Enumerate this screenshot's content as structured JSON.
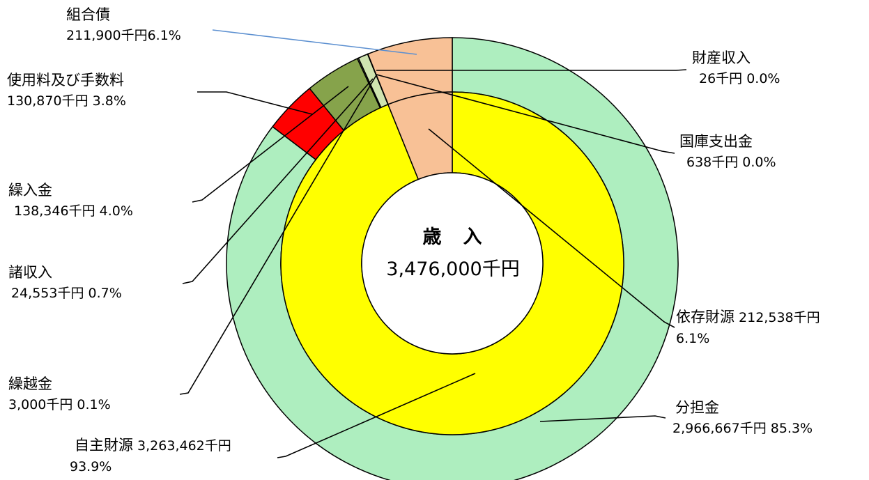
{
  "chart_data": {
    "type": "pie",
    "center": {
      "title": "歳　入",
      "total": "3,476,000千円"
    },
    "inner_ring": [
      {
        "name": "自主財源",
        "value": 3263462,
        "percent": 93.9,
        "color": "#ffff00"
      },
      {
        "name": "依存財源",
        "value": 212538,
        "percent": 6.1,
        "color": "#f8c196"
      }
    ],
    "outer_ring": [
      {
        "name": "分担金",
        "value": 2966667,
        "percent": 85.3,
        "color": "#aeeebf"
      },
      {
        "name": "使用料及び手数料",
        "value": 130870,
        "percent": 3.8,
        "color": "#ff0000"
      },
      {
        "name": "繰入金",
        "value": 138346,
        "percent": 4.0,
        "color": "#86a34b"
      },
      {
        "name": "繰越金",
        "value": 3000,
        "percent": 0.1,
        "color": "#cfe3b0"
      },
      {
        "name": "諸収入",
        "value": 24553,
        "percent": 0.7,
        "color": "#cfe3b0"
      },
      {
        "name": "財産収入",
        "value": 26,
        "percent": 0.0,
        "color": "#000000"
      },
      {
        "name": "国庫支出金",
        "value": 638,
        "percent": 0.0,
        "color": "#000000"
      },
      {
        "name": "組合債",
        "value": 211900,
        "percent": 6.1,
        "color": "#f8c196"
      }
    ],
    "labels": {
      "kumiaisai": {
        "name": "組合債",
        "value": "211,900千円6.1%"
      },
      "shiyoryo": {
        "name": "使用料及び手数料",
        "value": "130,870千円 3.8%"
      },
      "kurireikin": {
        "name": "繰入金",
        "value": "138,346千円 4.0%"
      },
      "shoshunyu": {
        "name": "諸収入",
        "value": "24,553千円 0.7%"
      },
      "kurikoshikin": {
        "name": "繰越金",
        "value": "3,000千円 0.1%"
      },
      "jishu": {
        "name": "自主財源",
        "value": "3,263,462千円",
        "pct": "93.9%"
      },
      "zaisan": {
        "name": "財産収入",
        "value": "26千円 0.0%"
      },
      "kokko": {
        "name": "国庫支出金",
        "value": "638千円 0.0%"
      },
      "izon": {
        "name": "依存財源",
        "value": "212,538千円",
        "pct": "6.1%"
      },
      "buntankin": {
        "name": "分担金",
        "value": "2,966,667千円 85.3%"
      }
    },
    "leader_line_colors": {
      "default": "#000000",
      "kumiaisai": "#5b8fd0"
    }
  }
}
